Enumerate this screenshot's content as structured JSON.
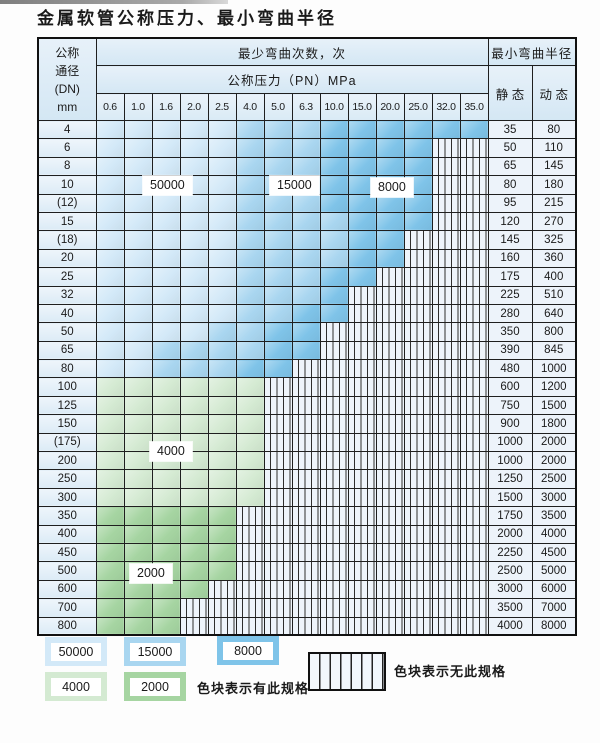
{
  "title": "金属软管公称压力、最小弯曲半径",
  "colors": {
    "c50000": "#d3e9f8",
    "c15000": "#a9d6f0",
    "c8000": "#7fc4e9",
    "c4000": "#d4ead2",
    "c2000": "#a6d5a2"
  },
  "zone_labels": [
    "50000",
    "15000",
    "8000",
    "4000",
    "2000"
  ],
  "table": {
    "corner_header": [
      "公称",
      "通径",
      "(DN)",
      "mm"
    ],
    "bend_cycles_header": "最少弯曲次数，次",
    "pressure_header": "公称压力（PN）MPa",
    "radius_header": "最小弯曲半径",
    "static_header": "静 态",
    "dynamic_header": "动 态",
    "pressure_columns": [
      "0.6",
      "1.0",
      "1.6",
      "2.0",
      "2.5",
      "4.0",
      "5.0",
      "6.3",
      "10.0",
      "15.0",
      "20.0",
      "25.0",
      "32.0",
      "35.0"
    ],
    "rows": [
      {
        "dn": "4",
        "static": "35",
        "dynamic": "80",
        "bands": [
          {
            "cycles": "50000",
            "from": 0,
            "to": 4
          },
          {
            "cycles": "15000",
            "from": 5,
            "to": 7
          },
          {
            "cycles": "8000",
            "from": 8,
            "to": 13
          }
        ]
      },
      {
        "dn": "6",
        "static": "50",
        "dynamic": "110",
        "bands": [
          {
            "cycles": "50000",
            "from": 0,
            "to": 4
          },
          {
            "cycles": "15000",
            "from": 5,
            "to": 7
          },
          {
            "cycles": "8000",
            "from": 8,
            "to": 11
          }
        ]
      },
      {
        "dn": "8",
        "static": "65",
        "dynamic": "145",
        "bands": [
          {
            "cycles": "50000",
            "from": 0,
            "to": 4
          },
          {
            "cycles": "15000",
            "from": 5,
            "to": 7
          },
          {
            "cycles": "8000",
            "from": 8,
            "to": 11
          }
        ]
      },
      {
        "dn": "10",
        "static": "80",
        "dynamic": "180",
        "bands": [
          {
            "cycles": "50000",
            "from": 0,
            "to": 4
          },
          {
            "cycles": "15000",
            "from": 5,
            "to": 7
          },
          {
            "cycles": "8000",
            "from": 8,
            "to": 11
          }
        ]
      },
      {
        "dn": "(12)",
        "static": "95",
        "dynamic": "215",
        "bands": [
          {
            "cycles": "50000",
            "from": 0,
            "to": 4
          },
          {
            "cycles": "15000",
            "from": 5,
            "to": 7
          },
          {
            "cycles": "8000",
            "from": 8,
            "to": 11
          }
        ]
      },
      {
        "dn": "15",
        "static": "120",
        "dynamic": "270",
        "bands": [
          {
            "cycles": "50000",
            "from": 0,
            "to": 4
          },
          {
            "cycles": "15000",
            "from": 5,
            "to": 8
          },
          {
            "cycles": "8000",
            "from": 9,
            "to": 11
          }
        ]
      },
      {
        "dn": "(18)",
        "static": "145",
        "dynamic": "325",
        "bands": [
          {
            "cycles": "50000",
            "from": 0,
            "to": 4
          },
          {
            "cycles": "15000",
            "from": 5,
            "to": 8
          },
          {
            "cycles": "8000",
            "from": 9,
            "to": 10
          }
        ]
      },
      {
        "dn": "20",
        "static": "160",
        "dynamic": "360",
        "bands": [
          {
            "cycles": "50000",
            "from": 0,
            "to": 4
          },
          {
            "cycles": "15000",
            "from": 5,
            "to": 8
          },
          {
            "cycles": "8000",
            "from": 9,
            "to": 10
          }
        ]
      },
      {
        "dn": "25",
        "static": "175",
        "dynamic": "400",
        "bands": [
          {
            "cycles": "50000",
            "from": 0,
            "to": 4
          },
          {
            "cycles": "15000",
            "from": 5,
            "to": 7
          },
          {
            "cycles": "8000",
            "from": 8,
            "to": 9
          }
        ]
      },
      {
        "dn": "32",
        "static": "225",
        "dynamic": "510",
        "bands": [
          {
            "cycles": "50000",
            "from": 0,
            "to": 4
          },
          {
            "cycles": "15000",
            "from": 5,
            "to": 7
          },
          {
            "cycles": "8000",
            "from": 8,
            "to": 8
          }
        ]
      },
      {
        "dn": "40",
        "static": "280",
        "dynamic": "640",
        "bands": [
          {
            "cycles": "50000",
            "from": 0,
            "to": 4
          },
          {
            "cycles": "15000",
            "from": 5,
            "to": 6
          },
          {
            "cycles": "8000",
            "from": 7,
            "to": 8
          }
        ]
      },
      {
        "dn": "50",
        "static": "350",
        "dynamic": "800",
        "bands": [
          {
            "cycles": "50000",
            "from": 0,
            "to": 3
          },
          {
            "cycles": "15000",
            "from": 4,
            "to": 5
          },
          {
            "cycles": "8000",
            "from": 6,
            "to": 7
          }
        ]
      },
      {
        "dn": "65",
        "static": "390",
        "dynamic": "845",
        "bands": [
          {
            "cycles": "50000",
            "from": 0,
            "to": 1
          },
          {
            "cycles": "15000",
            "from": 2,
            "to": 5
          },
          {
            "cycles": "8000",
            "from": 6,
            "to": 7
          }
        ]
      },
      {
        "dn": "80",
        "static": "480",
        "dynamic": "1000",
        "bands": [
          {
            "cycles": "50000",
            "from": 0,
            "to": 1
          },
          {
            "cycles": "15000",
            "from": 2,
            "to": 4
          },
          {
            "cycles": "8000",
            "from": 5,
            "to": 6
          }
        ]
      },
      {
        "dn": "100",
        "static": "600",
        "dynamic": "1200",
        "bands": [
          {
            "cycles": "4000",
            "from": 0,
            "to": 5
          }
        ]
      },
      {
        "dn": "125",
        "static": "750",
        "dynamic": "1500",
        "bands": [
          {
            "cycles": "4000",
            "from": 0,
            "to": 5
          }
        ]
      },
      {
        "dn": "150",
        "static": "900",
        "dynamic": "1800",
        "bands": [
          {
            "cycles": "4000",
            "from": 0,
            "to": 5
          }
        ]
      },
      {
        "dn": "(175)",
        "static": "1000",
        "dynamic": "2000",
        "bands": [
          {
            "cycles": "4000",
            "from": 0,
            "to": 5
          }
        ]
      },
      {
        "dn": "200",
        "static": "1000",
        "dynamic": "2000",
        "bands": [
          {
            "cycles": "4000",
            "from": 0,
            "to": 5
          }
        ]
      },
      {
        "dn": "250",
        "static": "1250",
        "dynamic": "2500",
        "bands": [
          {
            "cycles": "4000",
            "from": 0,
            "to": 5
          }
        ]
      },
      {
        "dn": "300",
        "static": "1500",
        "dynamic": "3000",
        "bands": [
          {
            "cycles": "4000",
            "from": 0,
            "to": 5
          }
        ]
      },
      {
        "dn": "350",
        "static": "1750",
        "dynamic": "3500",
        "bands": [
          {
            "cycles": "2000",
            "from": 0,
            "to": 4
          }
        ]
      },
      {
        "dn": "400",
        "static": "2000",
        "dynamic": "4000",
        "bands": [
          {
            "cycles": "2000",
            "from": 0,
            "to": 4
          }
        ]
      },
      {
        "dn": "450",
        "static": "2250",
        "dynamic": "4500",
        "bands": [
          {
            "cycles": "2000",
            "from": 0,
            "to": 4
          }
        ]
      },
      {
        "dn": "500",
        "static": "2500",
        "dynamic": "5000",
        "bands": [
          {
            "cycles": "2000",
            "from": 0,
            "to": 4
          }
        ]
      },
      {
        "dn": "600",
        "static": "3000",
        "dynamic": "6000",
        "bands": [
          {
            "cycles": "2000",
            "from": 0,
            "to": 3
          }
        ]
      },
      {
        "dn": "700",
        "static": "3500",
        "dynamic": "7000",
        "bands": [
          {
            "cycles": "2000",
            "from": 0,
            "to": 2
          }
        ]
      },
      {
        "dn": "800",
        "static": "4000",
        "dynamic": "8000",
        "bands": [
          {
            "cycles": "2000",
            "from": 0,
            "to": 2
          }
        ]
      }
    ]
  },
  "legend": {
    "items": [
      {
        "label": "50000",
        "color_key": "c50000"
      },
      {
        "label": "15000",
        "color_key": "c15000"
      },
      {
        "label": "8000",
        "color_key": "c8000"
      },
      {
        "label": "4000",
        "color_key": "c4000"
      },
      {
        "label": "2000",
        "color_key": "c2000"
      }
    ],
    "has_spec_note": "色块表示有此规格",
    "no_spec_note": "色块表示无此规格"
  }
}
